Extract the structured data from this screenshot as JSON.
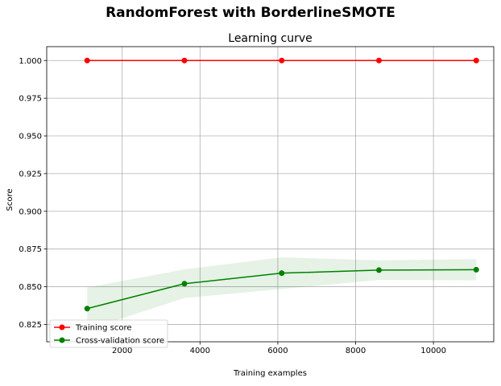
{
  "figure": {
    "suptitle": "RandomForest with BorderlineSMOTE"
  },
  "chart_data": {
    "type": "line",
    "title": "Learning curve",
    "xlabel": "Training examples",
    "ylabel": "Score",
    "xlim": [
      60,
      11550
    ],
    "ylim": [
      0.8135,
      1.0092
    ],
    "x_ticks": [
      2000,
      4000,
      6000,
      8000,
      10000
    ],
    "x_tick_labels": [
      "2000",
      "4000",
      "6000",
      "8000",
      "10000"
    ],
    "y_ticks": [
      0.825,
      0.85,
      0.875,
      0.9,
      0.925,
      0.95,
      0.975,
      1.0
    ],
    "y_tick_labels": [
      "0.825",
      "0.850",
      "0.875",
      "0.900",
      "0.925",
      "0.950",
      "0.975",
      "1.000"
    ],
    "grid": true,
    "legend_position": "lower-left",
    "x": [
      1100,
      3600,
      6100,
      8600,
      11100
    ],
    "series": [
      {
        "name": "Training score",
        "color": "#ff0000",
        "marker": "circle",
        "values": [
          1.0,
          1.0,
          1.0,
          1.0,
          1.0
        ],
        "band_upper": [
          1.0,
          1.0,
          1.0,
          1.0,
          1.0
        ],
        "band_lower": [
          1.0,
          1.0,
          1.0,
          1.0,
          1.0
        ],
        "band_color": "#ff0000"
      },
      {
        "name": "Cross-validation score",
        "color": "#008000",
        "marker": "circle",
        "values": [
          0.8355,
          0.852,
          0.859,
          0.861,
          0.8613
        ],
        "band_upper": [
          0.8495,
          0.8615,
          0.8695,
          0.8675,
          0.8683
        ],
        "band_lower": [
          0.8215,
          0.8425,
          0.8485,
          0.8545,
          0.8543
        ],
        "band_color": "#008000"
      }
    ]
  }
}
